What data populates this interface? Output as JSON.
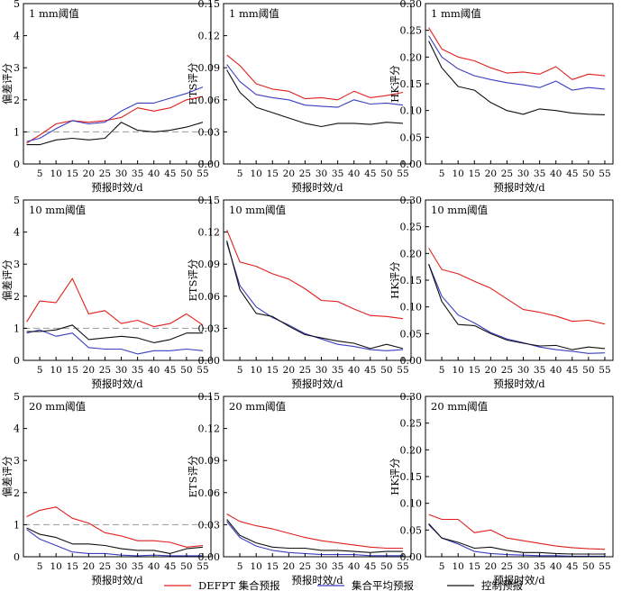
{
  "legend": [
    {
      "label": "DEFPT 集合预报",
      "color": "#e0201c"
    },
    {
      "label": "集合平均预报",
      "color": "#3a3ec0"
    },
    {
      "label": "控制预报",
      "color": "#111111"
    }
  ],
  "chart_data": [
    {
      "type": "line",
      "title": "1 mm阈值",
      "ylabel": "偏差评分",
      "xlabel": "预报时效/d",
      "x": [
        1,
        5,
        10,
        15,
        20,
        25,
        30,
        35,
        40,
        45,
        50,
        55
      ],
      "xticks": [
        5,
        10,
        15,
        20,
        25,
        30,
        35,
        40,
        45,
        50,
        55
      ],
      "ylim": [
        0,
        5
      ],
      "yticks": [
        0,
        1,
        2,
        3,
        4,
        5
      ],
      "reference_line": 1,
      "series": [
        {
          "name": "DEFPT 集合预报",
          "values": [
            0.65,
            0.9,
            1.25,
            1.35,
            1.3,
            1.35,
            1.45,
            1.75,
            1.65,
            1.75,
            2.0,
            2.1
          ]
        },
        {
          "name": "集合平均预报",
          "values": [
            0.7,
            0.8,
            1.1,
            1.35,
            1.25,
            1.3,
            1.65,
            1.9,
            1.9,
            2.05,
            2.2,
            2.4
          ]
        },
        {
          "name": "控制预报",
          "values": [
            0.6,
            0.6,
            0.75,
            0.8,
            0.75,
            0.8,
            1.3,
            1.05,
            1.0,
            1.05,
            1.15,
            1.3
          ]
        }
      ]
    },
    {
      "type": "line",
      "title": "1 mm阈值",
      "ylabel": "ETS评分",
      "xlabel": "预报时效/d",
      "x": [
        1,
        5,
        10,
        15,
        20,
        25,
        30,
        35,
        40,
        45,
        50,
        55
      ],
      "xticks": [
        5,
        10,
        15,
        20,
        25,
        30,
        35,
        40,
        45,
        50,
        55
      ],
      "ylim": [
        0,
        0.15
      ],
      "yticks": [
        "0.00",
        "0.03",
        "0.06",
        "0.09",
        "0.12",
        "0.15"
      ],
      "series": [
        {
          "name": "DEFPT 集合预报",
          "values": [
            0.102,
            0.092,
            0.075,
            0.07,
            0.068,
            0.061,
            0.062,
            0.06,
            0.068,
            0.062,
            0.064,
            0.067
          ]
        },
        {
          "name": "集合平均预报",
          "values": [
            0.093,
            0.077,
            0.065,
            0.062,
            0.06,
            0.055,
            0.054,
            0.053,
            0.06,
            0.056,
            0.057,
            0.055
          ]
        },
        {
          "name": "控制预报",
          "values": [
            0.088,
            0.067,
            0.053,
            0.048,
            0.043,
            0.038,
            0.035,
            0.038,
            0.038,
            0.037,
            0.039,
            0.038
          ]
        }
      ]
    },
    {
      "type": "line",
      "title": "1 mm阈值",
      "ylabel": "HK评分",
      "xlabel": "预报时效/d",
      "x": [
        1,
        5,
        10,
        15,
        20,
        25,
        30,
        35,
        40,
        45,
        50,
        55
      ],
      "xticks": [
        5,
        10,
        15,
        20,
        25,
        30,
        35,
        40,
        45,
        50,
        55
      ],
      "ylim": [
        0,
        0.3
      ],
      "yticks": [
        "0.00",
        "0.05",
        "0.10",
        "0.15",
        "0.20",
        "0.25",
        "0.30"
      ],
      "series": [
        {
          "name": "DEFPT 集合预报",
          "values": [
            0.255,
            0.215,
            0.2,
            0.193,
            0.18,
            0.17,
            0.172,
            0.168,
            0.182,
            0.158,
            0.168,
            0.165
          ]
        },
        {
          "name": "集合平均预报",
          "values": [
            0.24,
            0.2,
            0.178,
            0.165,
            0.158,
            0.152,
            0.148,
            0.143,
            0.155,
            0.138,
            0.143,
            0.14
          ]
        },
        {
          "name": "控制预报",
          "values": [
            0.23,
            0.18,
            0.145,
            0.138,
            0.115,
            0.1,
            0.093,
            0.103,
            0.1,
            0.095,
            0.093,
            0.092
          ]
        }
      ]
    },
    {
      "type": "line",
      "title": "10 mm阈值",
      "ylabel": "偏差评分",
      "xlabel": "预报时效/d",
      "x": [
        1,
        5,
        10,
        15,
        20,
        25,
        30,
        35,
        40,
        45,
        50,
        55
      ],
      "xticks": [
        5,
        10,
        15,
        20,
        25,
        30,
        35,
        40,
        45,
        50,
        55
      ],
      "ylim": [
        0,
        5
      ],
      "yticks": [
        0,
        1,
        2,
        3,
        4,
        5
      ],
      "reference_line": 1,
      "series": [
        {
          "name": "DEFPT 集合预报",
          "values": [
            1.2,
            1.85,
            1.8,
            2.55,
            1.45,
            1.55,
            1.15,
            1.25,
            1.05,
            1.15,
            1.45,
            1.1
          ]
        },
        {
          "name": "集合平均预报",
          "values": [
            0.85,
            0.95,
            0.75,
            0.85,
            0.4,
            0.35,
            0.35,
            0.2,
            0.3,
            0.3,
            0.35,
            0.3
          ]
        },
        {
          "name": "控制预报",
          "values": [
            0.9,
            0.9,
            0.95,
            1.1,
            0.65,
            0.7,
            0.75,
            0.7,
            0.55,
            0.65,
            0.85,
            0.85
          ]
        }
      ]
    },
    {
      "type": "line",
      "title": "10 mm阈值",
      "ylabel": "ETS评分",
      "xlabel": "预报时效/d",
      "x": [
        1,
        5,
        10,
        15,
        20,
        25,
        30,
        35,
        40,
        45,
        50,
        55
      ],
      "xticks": [
        5,
        10,
        15,
        20,
        25,
        30,
        35,
        40,
        45,
        50,
        55
      ],
      "ylim": [
        0,
        0.15
      ],
      "yticks": [
        "0.00",
        "0.03",
        "0.06",
        "0.09",
        "0.12",
        "0.15"
      ],
      "series": [
        {
          "name": "DEFPT 集合预报",
          "values": [
            0.122,
            0.092,
            0.088,
            0.081,
            0.076,
            0.067,
            0.056,
            0.055,
            0.048,
            0.042,
            0.041,
            0.039
          ]
        },
        {
          "name": "集合平均预报",
          "values": [
            0.11,
            0.07,
            0.05,
            0.04,
            0.033,
            0.025,
            0.02,
            0.015,
            0.013,
            0.01,
            0.009,
            0.01
          ]
        },
        {
          "name": "控制预报",
          "values": [
            0.112,
            0.066,
            0.044,
            0.041,
            0.032,
            0.024,
            0.021,
            0.018,
            0.016,
            0.011,
            0.015,
            0.011
          ]
        }
      ]
    },
    {
      "type": "line",
      "title": "10 mm阈值",
      "ylabel": "HK评分",
      "xlabel": "预报时效/d",
      "x": [
        1,
        5,
        10,
        15,
        20,
        25,
        30,
        35,
        40,
        45,
        50,
        55
      ],
      "xticks": [
        5,
        10,
        15,
        20,
        25,
        30,
        35,
        40,
        45,
        50,
        55
      ],
      "ylim": [
        0,
        0.3
      ],
      "yticks": [
        "0.00",
        "0.05",
        "0.10",
        "0.15",
        "0.20",
        "0.25",
        "0.30"
      ],
      "series": [
        {
          "name": "DEFPT 集合预报",
          "values": [
            0.21,
            0.17,
            0.162,
            0.148,
            0.135,
            0.115,
            0.095,
            0.09,
            0.083,
            0.073,
            0.075,
            0.068
          ]
        },
        {
          "name": "集合平均预报",
          "values": [
            0.18,
            0.12,
            0.085,
            0.07,
            0.052,
            0.04,
            0.033,
            0.025,
            0.02,
            0.017,
            0.013,
            0.014
          ]
        },
        {
          "name": "控制预报",
          "values": [
            0.18,
            0.11,
            0.067,
            0.065,
            0.05,
            0.038,
            0.032,
            0.027,
            0.028,
            0.02,
            0.025,
            0.022
          ]
        }
      ]
    },
    {
      "type": "line",
      "title": "20 mm阈值",
      "ylabel": "偏差评分",
      "xlabel": "预报时效/d",
      "x": [
        1,
        5,
        10,
        15,
        20,
        25,
        30,
        35,
        40,
        45,
        50,
        55
      ],
      "xticks": [
        5,
        10,
        15,
        20,
        25,
        30,
        35,
        40,
        45,
        50,
        55
      ],
      "ylim": [
        0,
        5
      ],
      "yticks": [
        0,
        1,
        2,
        3,
        4,
        5
      ],
      "reference_line": 1,
      "series": [
        {
          "name": "DEFPT 集合预报",
          "values": [
            1.25,
            1.45,
            1.55,
            1.2,
            1.05,
            0.75,
            0.65,
            0.5,
            0.5,
            0.45,
            0.3,
            0.35
          ]
        },
        {
          "name": "集合平均预报",
          "values": [
            0.85,
            0.55,
            0.35,
            0.15,
            0.1,
            0.1,
            0.05,
            0.03,
            0.05,
            0.03,
            0.03,
            0.03
          ]
        },
        {
          "name": "控制预报",
          "values": [
            0.9,
            0.7,
            0.6,
            0.4,
            0.4,
            0.35,
            0.25,
            0.2,
            0.2,
            0.1,
            0.25,
            0.3
          ]
        }
      ]
    },
    {
      "type": "line",
      "title": "20 mm阈值",
      "ylabel": "ETS评分",
      "xlabel": "预报时效/d",
      "x": [
        1,
        5,
        10,
        15,
        20,
        25,
        30,
        35,
        40,
        45,
        50,
        55
      ],
      "xticks": [
        5,
        10,
        15,
        20,
        25,
        30,
        35,
        40,
        45,
        50,
        55
      ],
      "ylim": [
        0,
        0.15
      ],
      "yticks": [
        "0.00",
        "0.03",
        "0.06",
        "0.09",
        "0.12",
        "0.15"
      ],
      "series": [
        {
          "name": "DEFPT 集合预报",
          "values": [
            0.04,
            0.033,
            0.029,
            0.026,
            0.022,
            0.018,
            0.015,
            0.013,
            0.011,
            0.009,
            0.008,
            0.008
          ]
        },
        {
          "name": "集合平均预报",
          "values": [
            0.033,
            0.018,
            0.01,
            0.006,
            0.004,
            0.003,
            0.002,
            0.002,
            0.002,
            0.001,
            0.001,
            0.001
          ]
        },
        {
          "name": "控制预报",
          "values": [
            0.035,
            0.02,
            0.013,
            0.009,
            0.008,
            0.008,
            0.006,
            0.006,
            0.005,
            0.004,
            0.005,
            0.005
          ]
        }
      ]
    },
    {
      "type": "line",
      "title": "20 mm阈值",
      "ylabel": "HK评分",
      "xlabel": "预报时效/d",
      "x": [
        1,
        5,
        10,
        15,
        20,
        25,
        30,
        35,
        40,
        45,
        50,
        55
      ],
      "xticks": [
        5,
        10,
        15,
        20,
        25,
        30,
        35,
        40,
        45,
        50,
        55
      ],
      "ylim": [
        0,
        0.3
      ],
      "yticks": [
        "0.00",
        "0.05",
        "0.10",
        "0.15",
        "0.20",
        "0.25",
        "0.30"
      ],
      "series": [
        {
          "name": "DEFPT 集合预报",
          "values": [
            0.079,
            0.07,
            0.07,
            0.045,
            0.05,
            0.035,
            0.03,
            0.025,
            0.02,
            0.017,
            0.015,
            0.014
          ]
        },
        {
          "name": "集合平均预报",
          "values": [
            0.06,
            0.035,
            0.024,
            0.01,
            0.006,
            0.004,
            0.003,
            0.002,
            0.002,
            0.001,
            0.001,
            0.001
          ]
        },
        {
          "name": "控制预报",
          "values": [
            0.062,
            0.035,
            0.027,
            0.016,
            0.018,
            0.012,
            0.008,
            0.008,
            0.006,
            0.005,
            0.005,
            0.005
          ]
        }
      ]
    }
  ]
}
